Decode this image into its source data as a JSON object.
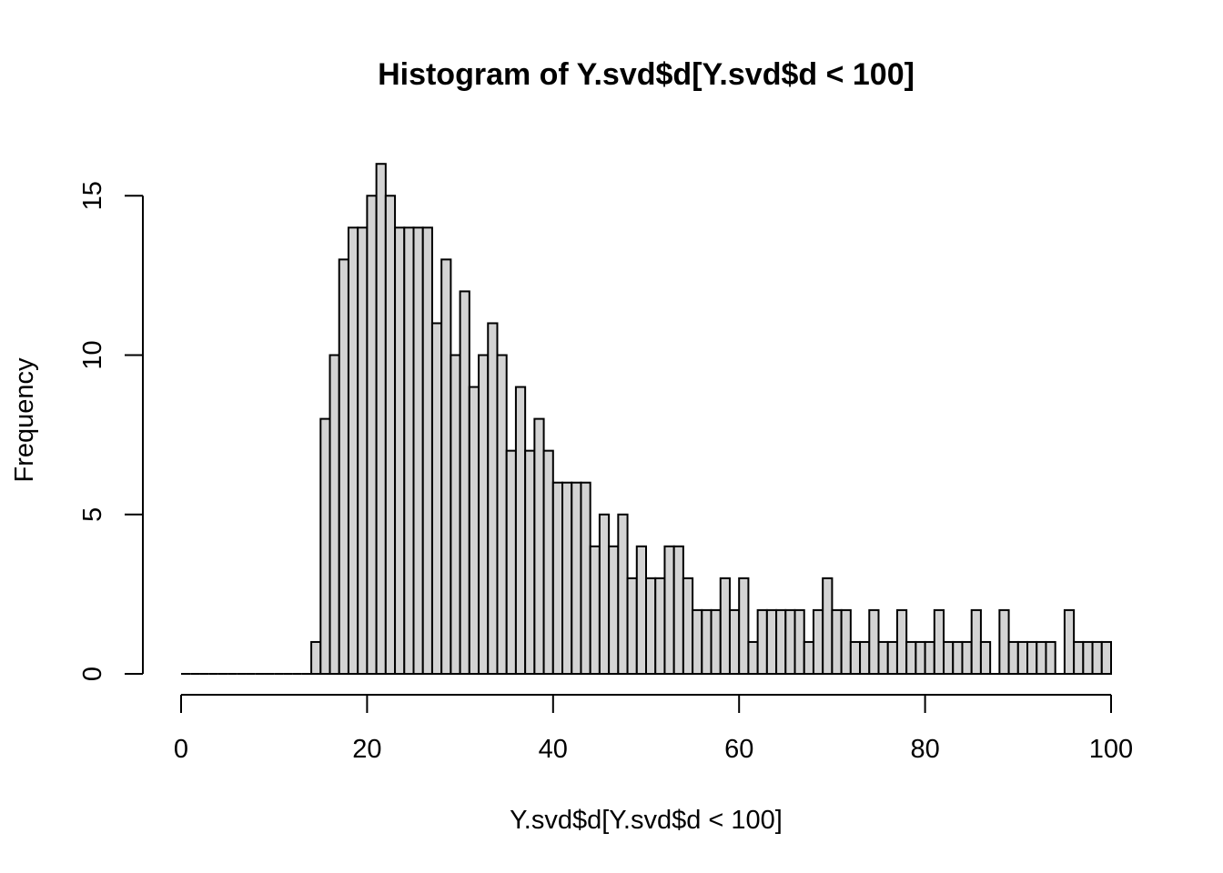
{
  "chart_data": {
    "type": "bar",
    "title": "Histogram of Y.svd$d[Y.svd$d < 100]",
    "xlabel": "Y.svd$d[Y.svd$d < 100]",
    "ylabel": "Frequency",
    "xlim": [
      0,
      100
    ],
    "ylim": [
      0,
      16
    ],
    "x_ticks": [
      0,
      20,
      40,
      60,
      80,
      100
    ],
    "y_ticks": [
      0,
      5,
      10,
      15
    ],
    "bin_width": 1,
    "bin_start": 0,
    "values": [
      0,
      0,
      0,
      0,
      0,
      0,
      0,
      0,
      0,
      0,
      0,
      0,
      0,
      0,
      1,
      8,
      10,
      13,
      14,
      14,
      15,
      16,
      15,
      14,
      14,
      14,
      14,
      11,
      13,
      10,
      12,
      9,
      10,
      11,
      10,
      7,
      9,
      7,
      8,
      7,
      6,
      6,
      6,
      6,
      4,
      5,
      4,
      5,
      3,
      4,
      3,
      3,
      4,
      4,
      3,
      2,
      2,
      2,
      3,
      2,
      3,
      1,
      2,
      2,
      2,
      2,
      2,
      1,
      2,
      3,
      2,
      2,
      1,
      1,
      2,
      1,
      1,
      2,
      1,
      1,
      1,
      2,
      1,
      1,
      1,
      2,
      1,
      0,
      2,
      1,
      1,
      1,
      1,
      1,
      0,
      2,
      1,
      1,
      1,
      1
    ],
    "bar_color": "#d3d3d3",
    "grid": false
  }
}
